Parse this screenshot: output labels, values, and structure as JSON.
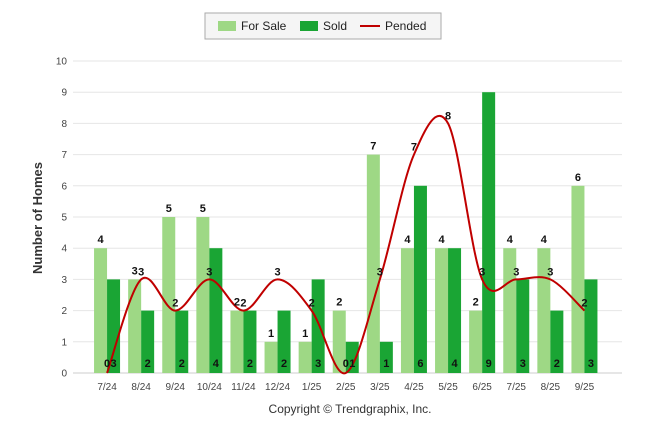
{
  "chart_data": {
    "type": "bar",
    "ylabel": "Number of Homes",
    "ylim": [
      0,
      10
    ],
    "yticks": [
      "0",
      "1",
      "2",
      "3",
      "4",
      "5",
      "6",
      "7",
      "8",
      "9",
      "10"
    ],
    "categories": [
      "7/24",
      "8/24",
      "9/24",
      "10/24",
      "11/24",
      "12/24",
      "1/25",
      "2/25",
      "3/25",
      "4/25",
      "5/25",
      "6/25",
      "7/25",
      "8/25",
      "9/25"
    ],
    "series": [
      {
        "name": "For Sale",
        "type": "bar",
        "color": "#9ed885",
        "values": [
          4,
          3,
          5,
          5,
          2,
          1,
          1,
          2,
          7,
          4,
          4,
          2,
          4,
          4,
          6
        ]
      },
      {
        "name": "Sold",
        "type": "bar",
        "color": "#1aa534",
        "values": [
          3,
          2,
          2,
          4,
          2,
          2,
          3,
          1,
          1,
          6,
          4,
          9,
          3,
          2,
          3
        ]
      },
      {
        "name": "Pended",
        "type": "line",
        "color": "#c00000",
        "values": [
          0,
          3,
          2,
          3,
          2,
          3,
          2,
          0,
          3,
          7,
          8,
          3,
          3,
          3,
          2
        ]
      }
    ],
    "grid": true,
    "legend": "top-center",
    "credit": "Copyright © Trendgraphix, Inc."
  }
}
